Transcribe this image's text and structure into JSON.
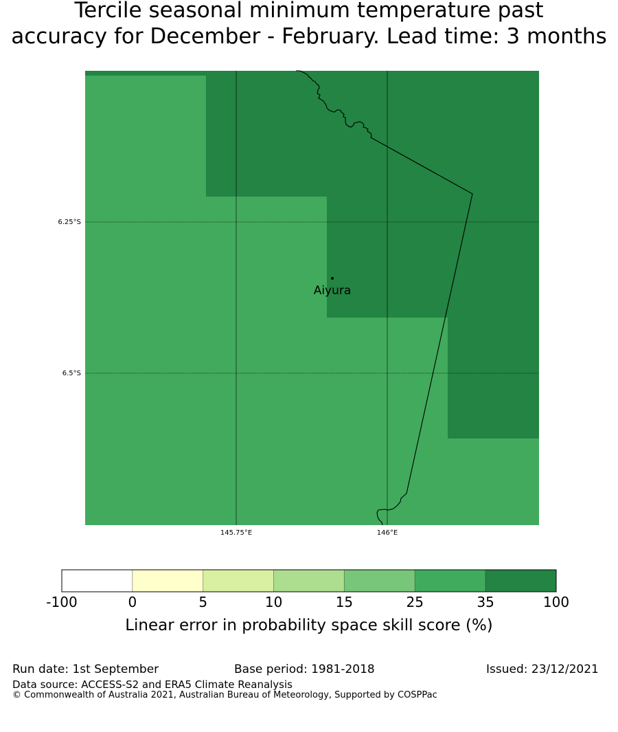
{
  "title": {
    "line1": "Tercile seasonal minimum temperature past",
    "line2": "accuracy for December - February. Lead time: 3 months"
  },
  "map": {
    "place_label": "Aiyura",
    "lat_labels": [
      "6.25°S",
      "6.5°S"
    ],
    "lon_labels": [
      "145.75°E",
      "146°E"
    ],
    "colors": {
      "skill_25_35": "#41aa5d",
      "skill_35_100": "#238443"
    }
  },
  "colorbar": {
    "label": "Linear error in probability space skill score (%)",
    "ticks": [
      "-100",
      "0",
      "5",
      "10",
      "15",
      "25",
      "35",
      "100"
    ],
    "colors": [
      "#ffffff",
      "#ffffcc",
      "#d9f0a3",
      "#addd8e",
      "#78c679",
      "#41ab5d",
      "#238443"
    ]
  },
  "footer": {
    "run_date": "Run date: 1st September",
    "base_period": "Base period: 1981-2018",
    "issued": "Issued: 23/12/2021",
    "data_source": "Data source: ACCESS-S2 and ERA5 Climate Reanalysis",
    "copyright": "© Commonwealth of Australia 2021, Australian Bureau of Meteorology, Supported by COSPPac"
  }
}
